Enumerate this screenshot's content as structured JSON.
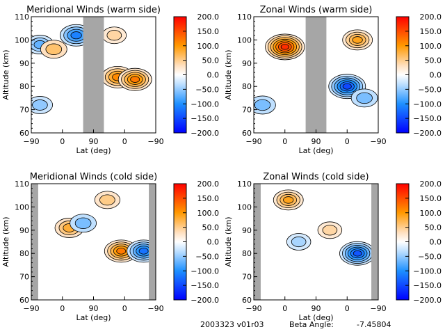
{
  "footer": {
    "date_version": "2003323 v01r03",
    "beta_label": "Beta Angle:",
    "beta_value": "-7.45804"
  },
  "chart_data": [
    {
      "type": "heatmap",
      "title": "Meridional Winds (warm side)",
      "xlabel": "Lat (deg)",
      "ylabel": "Altitude (km)",
      "x_tick_labels": [
        "-90",
        "0",
        "90",
        "0",
        "-90"
      ],
      "y_ticks": [
        60,
        70,
        80,
        90,
        100,
        110
      ],
      "ylim": [
        60,
        110
      ],
      "gap_regions": [
        [
          60,
          120
        ]
      ],
      "colorbar": {
        "min": -200,
        "max": 200,
        "tick_labels": [
          "200.0",
          "150.0",
          "100.0",
          "50.0",
          "0.0",
          "-50.0",
          "-100.0",
          "-150.0",
          "-200.0"
        ]
      },
      "features": [
        {
          "x": -65,
          "alt": 98,
          "value": -70
        },
        {
          "x": -65,
          "alt": 72,
          "value": -50
        },
        {
          "x": -25,
          "alt": 96,
          "value": 60
        },
        {
          "x": 40,
          "alt": 102,
          "value": -110
        },
        {
          "x": 160,
          "alt": 84,
          "value": 110
        },
        {
          "x": 210,
          "alt": 83,
          "value": 120
        },
        {
          "x": 150,
          "alt": 102,
          "value": 40
        }
      ]
    },
    {
      "type": "heatmap",
      "title": "Zonal Winds (warm side)",
      "xlabel": "Lat (deg)",
      "ylabel": "Altitude (km)",
      "x_tick_labels": [
        "-90",
        "0",
        "90",
        "0",
        "-90"
      ],
      "y_ticks": [
        60,
        70,
        80,
        90,
        100,
        110
      ],
      "ylim": [
        60,
        110
      ],
      "gap_regions": [
        [
          60,
          120
        ]
      ],
      "colorbar": {
        "min": -200,
        "max": 200,
        "tick_labels": [
          "200.0",
          "150.0",
          "100.0",
          "50.0",
          "0.0",
          "-50.0",
          "-100.0",
          "-150.0",
          "-200.0"
        ]
      },
      "features": [
        {
          "x": 0,
          "alt": 97,
          "value": 170
        },
        {
          "x": -65,
          "alt": 72,
          "value": -60
        },
        {
          "x": 210,
          "alt": 100,
          "value": 90
        },
        {
          "x": 180,
          "alt": 80,
          "value": -150
        },
        {
          "x": 230,
          "alt": 75,
          "value": -60
        }
      ]
    },
    {
      "type": "heatmap",
      "title": "Meridional Winds (cold side)",
      "xlabel": "Lat (deg)",
      "ylabel": "Altitude (km)",
      "x_tick_labels": [
        "-90",
        "0",
        "90",
        "0",
        "-90"
      ],
      "y_ticks": [
        60,
        70,
        80,
        90,
        100,
        110
      ],
      "ylim": [
        60,
        110
      ],
      "gap_regions": [
        [
          -90,
          -70
        ],
        [
          250,
          270
        ]
      ],
      "colorbar": {
        "min": -200,
        "max": 200,
        "tick_labels": [
          "200.0",
          "150.0",
          "100.0",
          "50.0",
          "0.0",
          "-50.0",
          "-100.0",
          "-150.0",
          "-200.0"
        ]
      },
      "features": [
        {
          "x": 20,
          "alt": 91,
          "value": 80
        },
        {
          "x": 60,
          "alt": 93,
          "value": -60
        },
        {
          "x": 130,
          "alt": 103,
          "value": 50
        },
        {
          "x": 170,
          "alt": 81,
          "value": 120
        },
        {
          "x": 235,
          "alt": 81,
          "value": -120
        }
      ]
    },
    {
      "type": "heatmap",
      "title": "Zonal Winds (cold side)",
      "xlabel": "Lat (deg)",
      "ylabel": "Altitude (km)",
      "x_tick_labels": [
        "-90",
        "0",
        "90",
        "0",
        "-90"
      ],
      "y_ticks": [
        60,
        70,
        80,
        90,
        100,
        110
      ],
      "ylim": [
        60,
        110
      ],
      "gap_regions": [
        [
          -90,
          -70
        ],
        [
          250,
          270
        ]
      ],
      "colorbar": {
        "min": -200,
        "max": 200,
        "tick_labels": [
          "200.0",
          "150.0",
          "100.0",
          "50.0",
          "0.0",
          "-50.0",
          "-100.0",
          "-150.0",
          "-200.0"
        ]
      },
      "features": [
        {
          "x": 10,
          "alt": 103,
          "value": 90
        },
        {
          "x": 130,
          "alt": 90,
          "value": 40
        },
        {
          "x": 210,
          "alt": 80,
          "value": -140
        },
        {
          "x": 40,
          "alt": 85,
          "value": -40
        }
      ]
    }
  ]
}
